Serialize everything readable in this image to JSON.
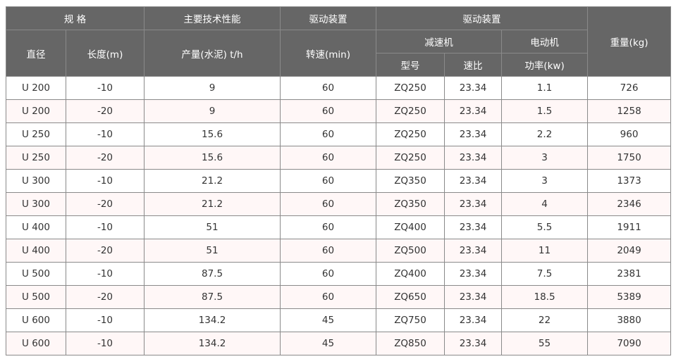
{
  "header": {
    "spec": "规 格",
    "performance": "主要技术性能",
    "drive1": "驱动装置",
    "drive2": "驱动装置",
    "weight": "重量(kg)",
    "diameter": "直径",
    "length": "长度(m)",
    "output": "产量(水泥) t/h",
    "speed": "转速(min)",
    "reducer": "减速机",
    "motor": "电动机",
    "model": "型号",
    "ratio": "速比",
    "power": "功率(kw)"
  },
  "colors": {
    "header_bg": "#666666",
    "alt_row": "#fff7f7",
    "border": "#8a8a8a"
  },
  "rows": [
    [
      "U 200",
      "-10",
      "9",
      "60",
      "ZQ250",
      "23.34",
      "1.1",
      "726"
    ],
    [
      "U 200",
      "-20",
      "9",
      "60",
      "ZQ250",
      "23.34",
      "1.5",
      "1258"
    ],
    [
      "U 250",
      "-10",
      "15.6",
      "60",
      "ZQ250",
      "23.34",
      "2.2",
      "960"
    ],
    [
      "U 250",
      "-20",
      "15.6",
      "60",
      "ZQ250",
      "23.34",
      "3",
      "1750"
    ],
    [
      "U 300",
      "-10",
      "21.2",
      "60",
      "ZQ350",
      "23.34",
      "3",
      "1373"
    ],
    [
      "U 300",
      "-20",
      "21.2",
      "60",
      "ZQ350",
      "23.34",
      "4",
      "2346"
    ],
    [
      "U 400",
      "-10",
      "51",
      "60",
      "ZQ400",
      "23.34",
      "5.5",
      "1911"
    ],
    [
      "U 400",
      "-20",
      "51",
      "60",
      "ZQ500",
      "23.34",
      "11",
      "2049"
    ],
    [
      "U 500",
      "-10",
      "87.5",
      "60",
      "ZQ400",
      "23.34",
      "7.5",
      "2381"
    ],
    [
      "U 500",
      "-20",
      "87.5",
      "60",
      "ZQ650",
      "23.34",
      "18.5",
      "5389"
    ],
    [
      "U 600",
      "-10",
      "134.2",
      "45",
      "ZQ750",
      "23.34",
      "22",
      "3880"
    ],
    [
      "U 600",
      "-10",
      "134.2",
      "45",
      "ZQ850",
      "23.34",
      "55",
      "7090"
    ]
  ]
}
